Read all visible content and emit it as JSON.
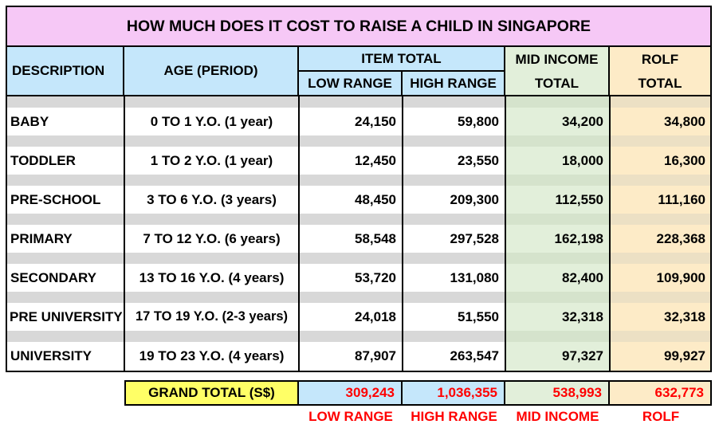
{
  "title": "HOW MUCH DOES IT COST TO RAISE A CHILD IN SINGAPORE",
  "headers": {
    "description": "DESCRIPTION",
    "age": "AGE (PERIOD)",
    "item_total": "ITEM TOTAL",
    "low_range": "LOW RANGE",
    "high_range": "HIGH RANGE",
    "mid_income_1": "MID INCOME",
    "mid_income_2": "TOTAL",
    "rolf_1": "ROLF",
    "rolf_2": "TOTAL"
  },
  "rows": [
    {
      "description": "BABY",
      "age": "0 TO 1 Y.O. (1 year)",
      "low": "24,150",
      "high": "59,800",
      "mid": "34,200",
      "rolf": "34,800"
    },
    {
      "description": "TODDLER",
      "age": "1 TO 2 Y.O. (1 year)",
      "low": "12,450",
      "high": "23,550",
      "mid": "18,000",
      "rolf": "16,300"
    },
    {
      "description": "PRE-SCHOOL",
      "age": "3 TO 6 Y.O. (3 years)",
      "low": "48,450",
      "high": "209,300",
      "mid": "112,550",
      "rolf": "111,160"
    },
    {
      "description": "PRIMARY",
      "age": "7 TO 12 Y.O. (6 years)",
      "low": "58,548",
      "high": "297,528",
      "mid": "162,198",
      "rolf": "228,368"
    },
    {
      "description": "SECONDARY",
      "age": "13 TO 16 Y.O. (4 years)",
      "low": "53,720",
      "high": "131,080",
      "mid": "82,400",
      "rolf": "109,900"
    },
    {
      "description": "PRE UNIVERSITY",
      "age": "17 TO 19 Y.O. (2-3 years)",
      "low": "24,018",
      "high": "51,550",
      "mid": "32,318",
      "rolf": "32,318"
    },
    {
      "description": "UNIVERSITY",
      "age": "19 TO 23 Y.O. (4 years)",
      "low": "87,907",
      "high": "263,547",
      "mid": "97,327",
      "rolf": "99,927"
    }
  ],
  "grand_total": {
    "label": "GRAND TOTAL (S$)",
    "low": "309,243",
    "high": "1,036,355",
    "mid": "538,993",
    "rolf": "632,773"
  },
  "footer_labels": {
    "low": "LOW RANGE",
    "high": "HIGH RANGE",
    "mid": "MID INCOME",
    "rolf": "ROLF"
  },
  "colors": {
    "title_bg": "#f6c8f6",
    "header_bg": "#c5e7fb",
    "mid_bg": "#e2efda",
    "rolf_bg": "#fdebc7",
    "grand_total_bg": "#ffff66",
    "total_text": "#ff0000"
  }
}
